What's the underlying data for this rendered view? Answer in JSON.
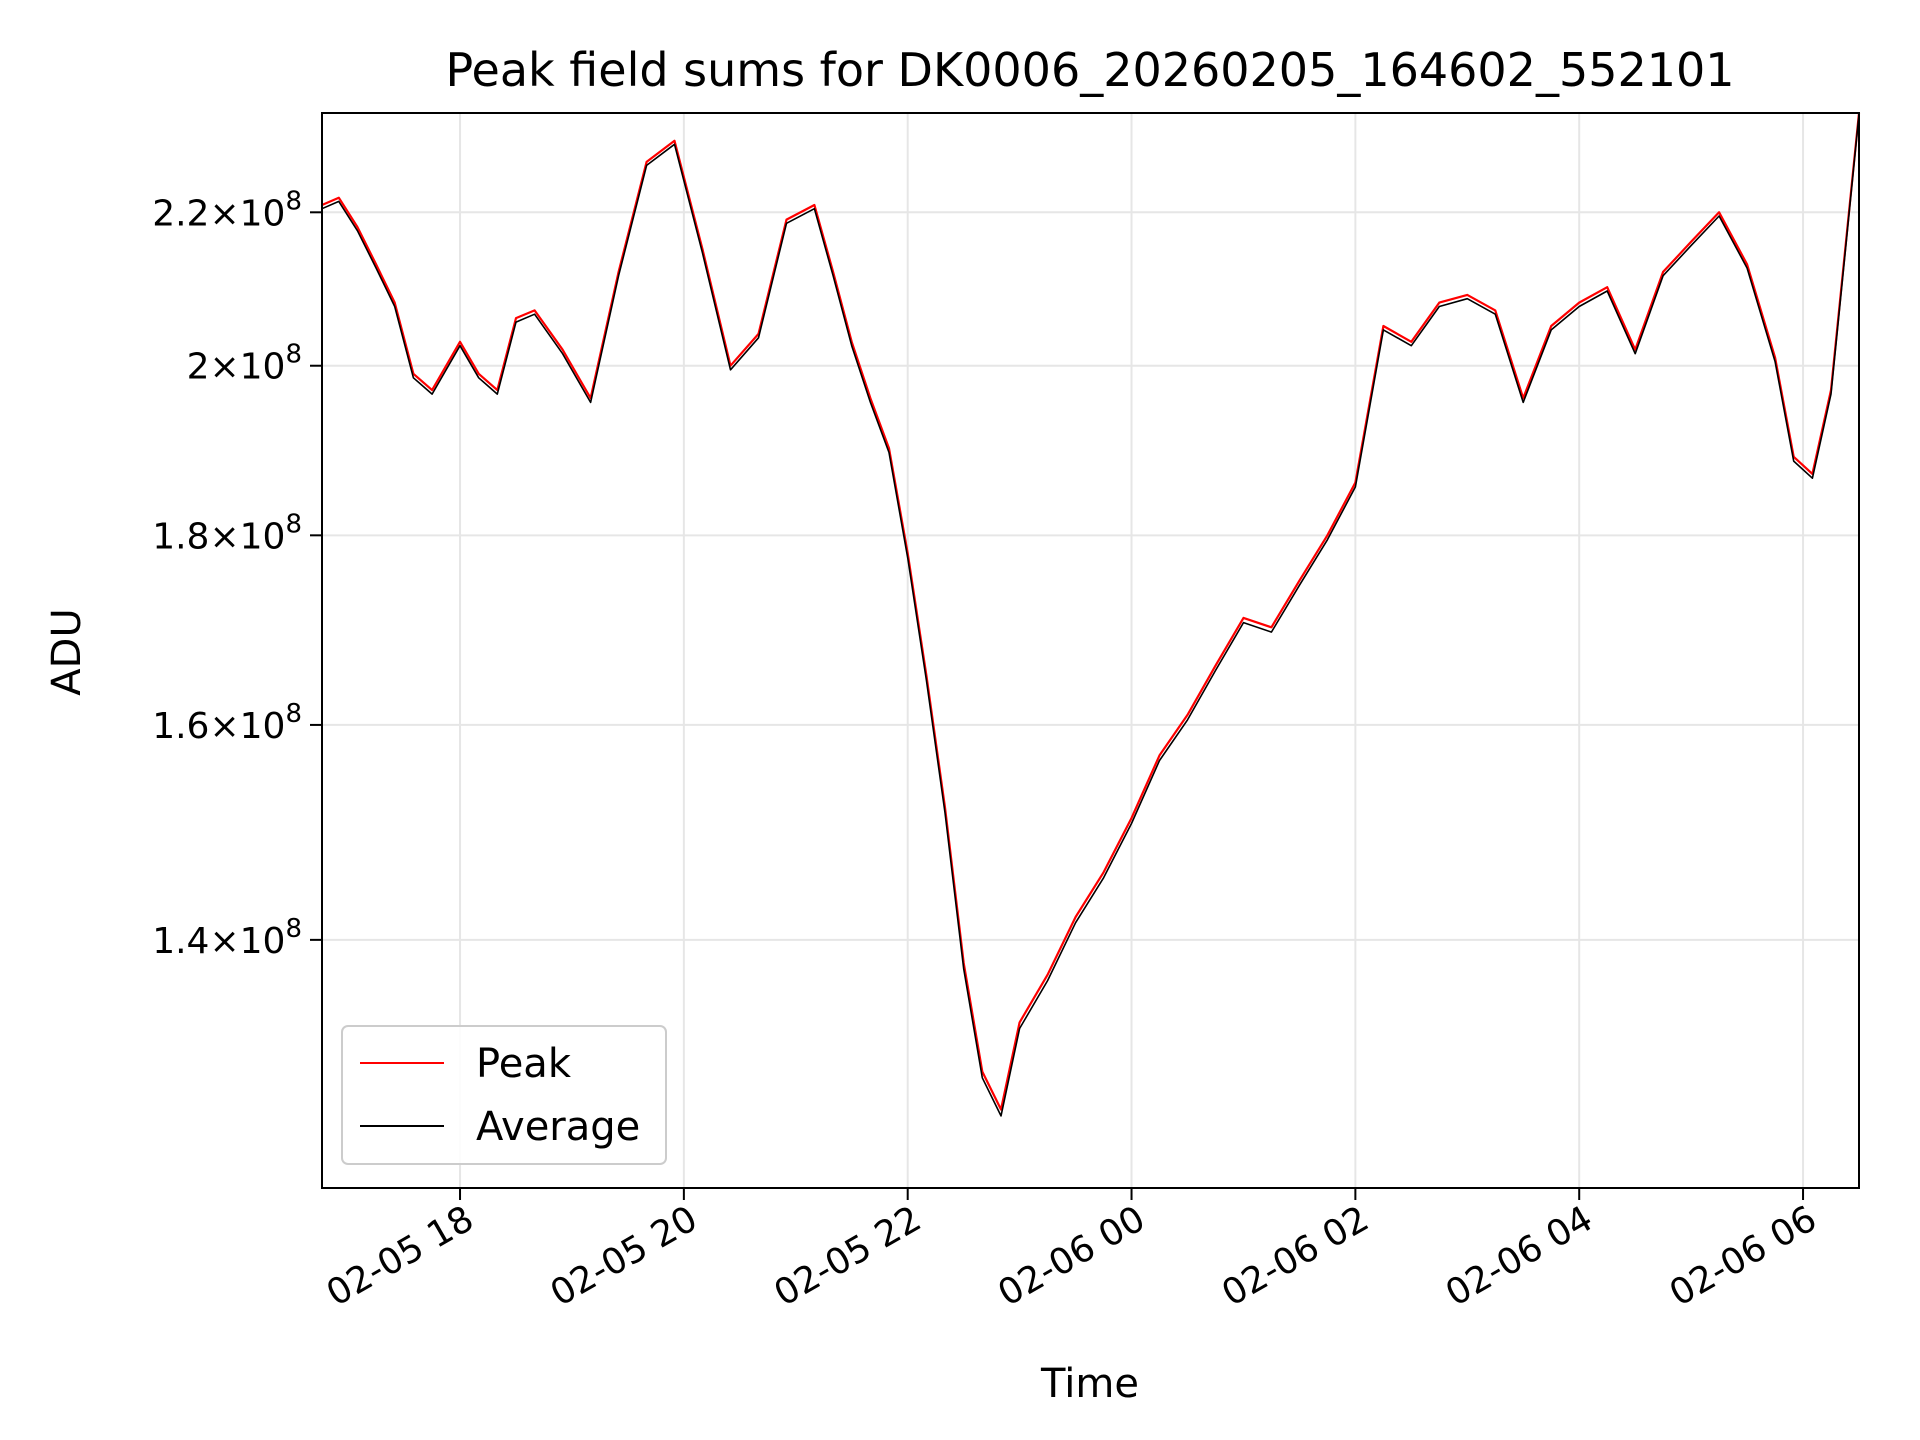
{
  "chart_data": {
    "type": "line",
    "title": "Peak field sums for DK0006_20260205_164602_552101",
    "xlabel": "Time",
    "ylabel": "ADU",
    "y_scale": "log",
    "ylim": [
      120000000,
      234000000
    ],
    "xlim": [
      "2026-02-05 16:46",
      "2026-02-06 06:30"
    ],
    "grid": true,
    "legend_position": "lower-left",
    "x_ticks": [
      {
        "value": "2026-02-05 18:00",
        "label": "02-05 18"
      },
      {
        "value": "2026-02-05 20:00",
        "label": "02-05 20"
      },
      {
        "value": "2026-02-05 22:00",
        "label": "02-05 22"
      },
      {
        "value": "2026-02-06 00:00",
        "label": "02-06 00"
      },
      {
        "value": "2026-02-06 02:00",
        "label": "02-06 02"
      },
      {
        "value": "2026-02-06 04:00",
        "label": "02-06 04"
      },
      {
        "value": "2026-02-06 06:00",
        "label": "02-06 06"
      }
    ],
    "y_ticks": [
      {
        "value": 140000000,
        "base": "1.4",
        "exp": "8"
      },
      {
        "value": 160000000,
        "base": "1.6",
        "exp": "8"
      },
      {
        "value": 180000000,
        "base": "1.8",
        "exp": "8"
      },
      {
        "value": 200000000,
        "base": "2",
        "exp": "8"
      },
      {
        "value": 220000000,
        "base": "2.2",
        "exp": "8"
      }
    ],
    "x": [
      "2026-02-05 16:46",
      "2026-02-05 16:55",
      "2026-02-05 17:05",
      "2026-02-05 17:15",
      "2026-02-05 17:25",
      "2026-02-05 17:35",
      "2026-02-05 17:45",
      "2026-02-05 18:00",
      "2026-02-05 18:10",
      "2026-02-05 18:20",
      "2026-02-05 18:30",
      "2026-02-05 18:40",
      "2026-02-05 18:55",
      "2026-02-05 19:10",
      "2026-02-05 19:25",
      "2026-02-05 19:40",
      "2026-02-05 19:55",
      "2026-02-05 20:10",
      "2026-02-05 20:25",
      "2026-02-05 20:40",
      "2026-02-05 20:55",
      "2026-02-05 21:10",
      "2026-02-05 21:20",
      "2026-02-05 21:30",
      "2026-02-05 21:40",
      "2026-02-05 21:50",
      "2026-02-05 22:00",
      "2026-02-05 22:10",
      "2026-02-05 22:20",
      "2026-02-05 22:30",
      "2026-02-05 22:40",
      "2026-02-05 22:50",
      "2026-02-05 23:00",
      "2026-02-05 23:15",
      "2026-02-05 23:30",
      "2026-02-05 23:45",
      "2026-02-06 00:00",
      "2026-02-06 00:15",
      "2026-02-06 00:30",
      "2026-02-06 00:45",
      "2026-02-06 01:00",
      "2026-02-06 01:15",
      "2026-02-06 01:30",
      "2026-02-06 01:45",
      "2026-02-06 02:00",
      "2026-02-06 02:15",
      "2026-02-06 02:30",
      "2026-02-06 02:45",
      "2026-02-06 03:00",
      "2026-02-06 03:15",
      "2026-02-06 03:30",
      "2026-02-06 03:45",
      "2026-02-06 04:00",
      "2026-02-06 04:15",
      "2026-02-06 04:30",
      "2026-02-06 04:45",
      "2026-02-06 05:00",
      "2026-02-06 05:15",
      "2026-02-06 05:30",
      "2026-02-06 05:45",
      "2026-02-06 05:55",
      "2026-02-06 06:05",
      "2026-02-06 06:15",
      "2026-02-06 06:30"
    ],
    "series": [
      {
        "name": "Peak",
        "color": "#ff0000",
        "values": [
          221000000,
          222000000,
          218000000,
          213000000,
          208000000,
          199000000,
          197000000,
          203000000,
          199000000,
          197000000,
          206000000,
          207000000,
          202000000,
          196000000,
          212000000,
          227000000,
          230000000,
          215000000,
          200000000,
          204000000,
          219000000,
          221000000,
          212000000,
          203000000,
          196000000,
          190000000,
          178000000,
          165000000,
          152000000,
          138000000,
          129000000,
          126000000,
          133000000,
          137000000,
          142000000,
          146000000,
          151000000,
          157000000,
          161000000,
          166000000,
          171000000,
          170000000,
          175000000,
          180000000,
          186000000,
          205000000,
          203000000,
          208000000,
          209000000,
          207000000,
          196000000,
          205000000,
          208000000,
          210000000,
          202000000,
          212000000,
          216000000,
          220000000,
          213000000,
          201000000,
          189000000,
          187000000,
          197000000,
          234000000
        ]
      },
      {
        "name": "Average",
        "color": "#000000",
        "values": [
          220500000,
          221500000,
          217500000,
          212500000,
          207500000,
          198500000,
          196500000,
          202500000,
          198500000,
          196500000,
          205500000,
          206500000,
          201500000,
          195500000,
          211500000,
          226500000,
          229500000,
          214500000,
          199500000,
          203500000,
          218500000,
          220500000,
          211500000,
          202500000,
          195500000,
          189500000,
          177500000,
          164500000,
          151500000,
          137500000,
          128500000,
          125500000,
          132500000,
          136500000,
          141500000,
          145500000,
          150500000,
          156500000,
          160500000,
          165500000,
          170500000,
          169500000,
          174500000,
          179500000,
          185500000,
          204500000,
          202500000,
          207500000,
          208500000,
          206500000,
          195500000,
          204500000,
          207500000,
          209500000,
          201500000,
          211500000,
          215500000,
          219500000,
          212500000,
          200500000,
          188500000,
          186500000,
          196500000,
          233800000
        ]
      }
    ]
  }
}
